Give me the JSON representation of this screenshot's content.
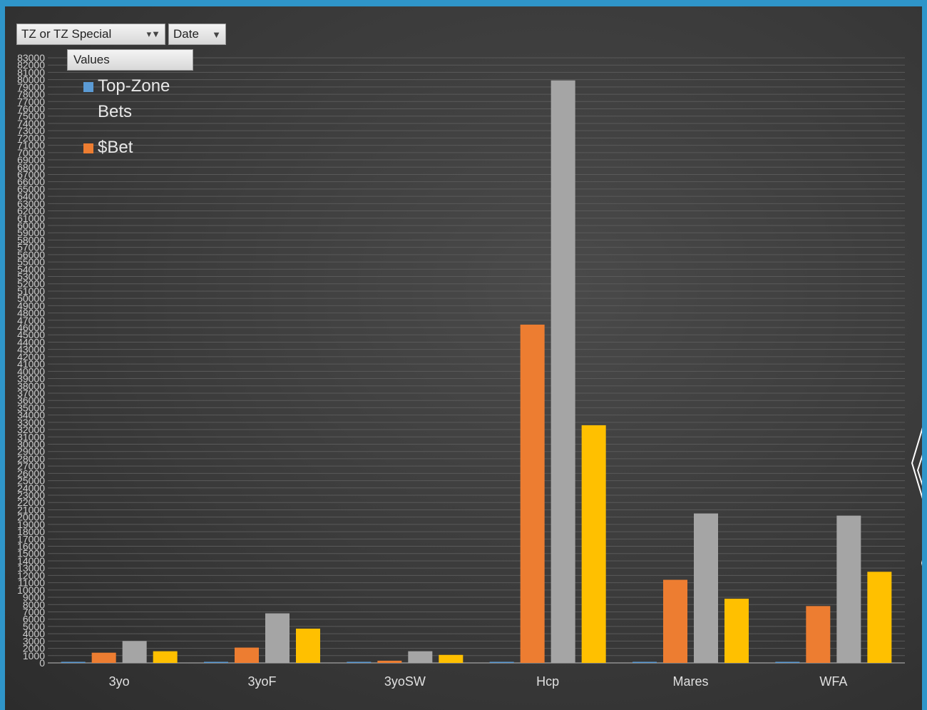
{
  "pivot": {
    "filter_label": "TZ or TZ Special",
    "date_label": "Date",
    "values_label": "Values"
  },
  "legend": {
    "items": [
      {
        "label_line1": "Top-Zone",
        "label_line2": "Bets",
        "color": "#5b9bd5"
      },
      {
        "label_line1": "$Bet",
        "label_line2": "",
        "color": "#ed7d31"
      }
    ]
  },
  "colors": {
    "blue": "#5b9bd5",
    "orange": "#ed7d31",
    "gray": "#a5a5a5",
    "gold": "#ffc000",
    "background": "#3c3c3c",
    "frame": "#2f95c9"
  },
  "chart_data": {
    "type": "bar",
    "categories": [
      "3yo",
      "3yoF",
      "3yoSW",
      "Hcp",
      "Mares",
      "WFA"
    ],
    "series": [
      {
        "name": "Top-Zone Bets",
        "color": "#5b9bd5",
        "values": [
          60,
          40,
          20,
          120,
          80,
          90
        ]
      },
      {
        "name": "$Bet",
        "color": "#ed7d31",
        "values": [
          1400,
          2100,
          300,
          46400,
          11400,
          7800
        ]
      },
      {
        "color": "#a5a5a5",
        "values": [
          3000,
          6800,
          1600,
          79900,
          20500,
          20200
        ]
      },
      {
        "color": "#ffc000",
        "values": [
          1600,
          4700,
          1100,
          32600,
          8800,
          12500
        ]
      }
    ],
    "ylim": [
      0,
      83000
    ],
    "ytick_step": 1000,
    "xlabel": "",
    "ylabel": "",
    "grid": true,
    "legend_position": "top-left"
  }
}
